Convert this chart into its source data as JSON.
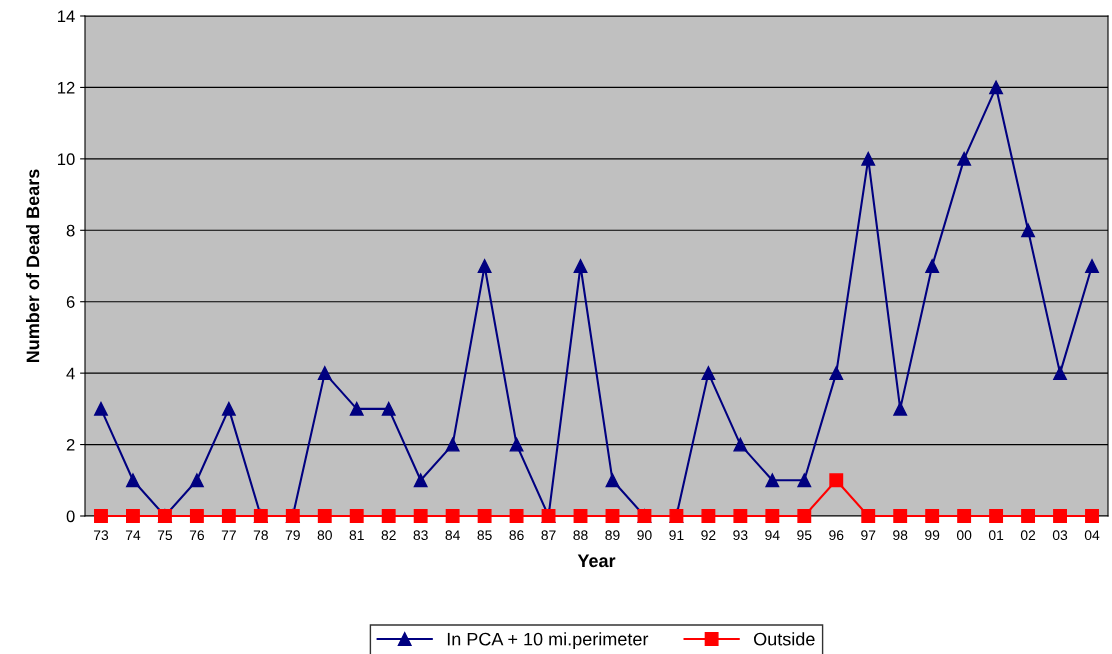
{
  "chart_data": {
    "type": "line",
    "xlabel": "Year",
    "ylabel": "Number of Dead Bears",
    "categories": [
      "73",
      "74",
      "75",
      "76",
      "77",
      "78",
      "79",
      "80",
      "81",
      "82",
      "83",
      "84",
      "85",
      "86",
      "87",
      "88",
      "89",
      "90",
      "91",
      "92",
      "93",
      "94",
      "95",
      "96",
      "97",
      "98",
      "99",
      "00",
      "01",
      "02",
      "03",
      "04"
    ],
    "series": [
      {
        "name": "In PCA + 10 mi.perimeter",
        "color": "#000080",
        "marker": "triangle",
        "values": [
          3,
          1,
          0,
          1,
          3,
          0,
          0,
          4,
          3,
          3,
          1,
          2,
          7,
          2,
          0,
          7,
          1,
          0,
          0,
          4,
          2,
          1,
          1,
          4,
          10,
          3,
          7,
          10,
          12,
          8,
          4,
          7
        ]
      },
      {
        "name": "Outside",
        "color": "#ff0000",
        "marker": "square",
        "values": [
          0,
          0,
          0,
          0,
          0,
          0,
          0,
          0,
          0,
          0,
          0,
          0,
          0,
          0,
          0,
          0,
          0,
          0,
          0,
          0,
          0,
          0,
          0,
          1,
          0,
          0,
          0,
          0,
          0,
          0,
          0,
          0
        ]
      }
    ],
    "ylim": [
      0,
      14
    ],
    "yticks": [
      0,
      2,
      4,
      6,
      8,
      10,
      12,
      14
    ],
    "grid": "y",
    "legend": "bottom",
    "line_style": "solid"
  }
}
